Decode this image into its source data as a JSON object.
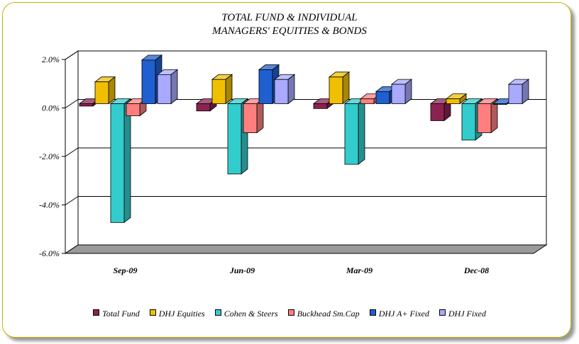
{
  "chart_data": {
    "type": "bar",
    "title": [
      "TOTAL FUND  & INDIVIDUAL",
      "MANAGERS' EQUITIES & BONDS"
    ],
    "categories": [
      "Sep-09",
      "Jun-09",
      "Mar-09",
      "Dec-08"
    ],
    "ylim": [
      -6.0,
      2.0
    ],
    "yticks": [
      "2.0%",
      "0.0%",
      "-2.0%",
      "-4.0%",
      "-6.0%"
    ],
    "ytick_values": [
      2.0,
      0.0,
      -2.0,
      -4.0,
      -6.0
    ],
    "grid": true,
    "legend_position": "bottom",
    "series": [
      {
        "name": "Total Fund",
        "color": "#8b2252",
        "values": [
          -0.1,
          -0.3,
          -0.2,
          -0.7
        ]
      },
      {
        "name": "DHJ Equities",
        "color": "#f0c000",
        "values": [
          0.9,
          1.0,
          1.1,
          0.2
        ]
      },
      {
        "name": "Cohen & Steers",
        "color": "#33cccc",
        "values": [
          -4.9,
          -2.9,
          -2.5,
          -1.5
        ]
      },
      {
        "name": "Buckhead Sm.Cap",
        "color": "#ff7f7f",
        "values": [
          -0.5,
          -1.2,
          0.2,
          -1.2
        ]
      },
      {
        "name": "DHJ A+ Fixed",
        "color": "#1f5fcf",
        "values": [
          1.8,
          1.4,
          0.5,
          0.0
        ]
      },
      {
        "name": "DHJ Fixed",
        "color": "#a9a9ff",
        "values": [
          1.2,
          1.0,
          0.8,
          0.8
        ]
      }
    ]
  }
}
